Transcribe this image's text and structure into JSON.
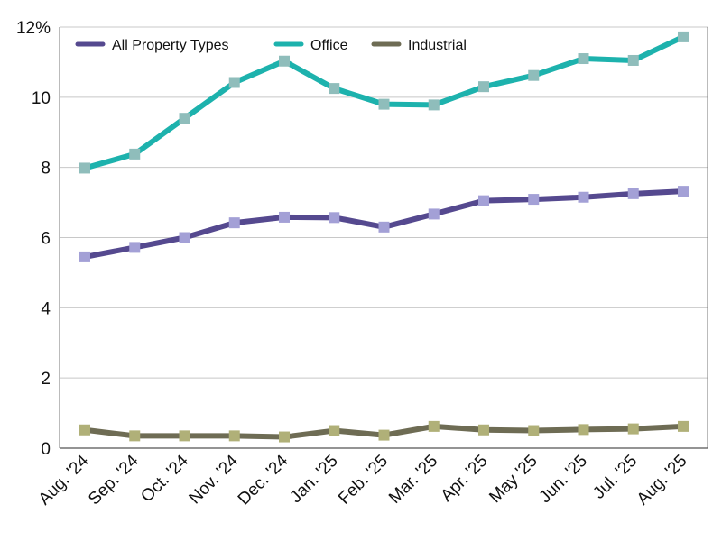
{
  "chart_data": {
    "type": "line",
    "categories": [
      "Aug. '24",
      "Sep. '24",
      "Oct. '24",
      "Nov. '24",
      "Dec. '24",
      "Jan. '25",
      "Feb. '25",
      "Mar. '25",
      "Apr. '25",
      "May '25",
      "Jun. '25",
      "Jul. '25",
      "Aug. '25"
    ],
    "y_ticks": [
      "0",
      "2",
      "4",
      "6",
      "8",
      "10",
      "12%"
    ],
    "ylim": [
      0,
      12
    ],
    "grid": true,
    "legend_position": "top-left",
    "series": [
      {
        "name": "All Property Types",
        "line_color": "#55498f",
        "marker_color": "#a3a0d6",
        "values": [
          5.45,
          5.72,
          6.0,
          6.42,
          6.58,
          6.57,
          6.3,
          6.67,
          7.05,
          7.09,
          7.15,
          7.25,
          7.32
        ]
      },
      {
        "name": "Office",
        "line_color": "#1db2ad",
        "marker_color": "#8fbdbb",
        "values": [
          7.98,
          8.38,
          9.4,
          10.42,
          11.03,
          10.25,
          9.8,
          9.78,
          10.3,
          10.62,
          11.1,
          11.05,
          11.72
        ]
      },
      {
        "name": "Industrial",
        "line_color": "#6e6c54",
        "marker_color": "#b0b078",
        "values": [
          0.52,
          0.35,
          0.35,
          0.35,
          0.32,
          0.5,
          0.37,
          0.62,
          0.52,
          0.5,
          0.53,
          0.55,
          0.62
        ]
      }
    ]
  }
}
